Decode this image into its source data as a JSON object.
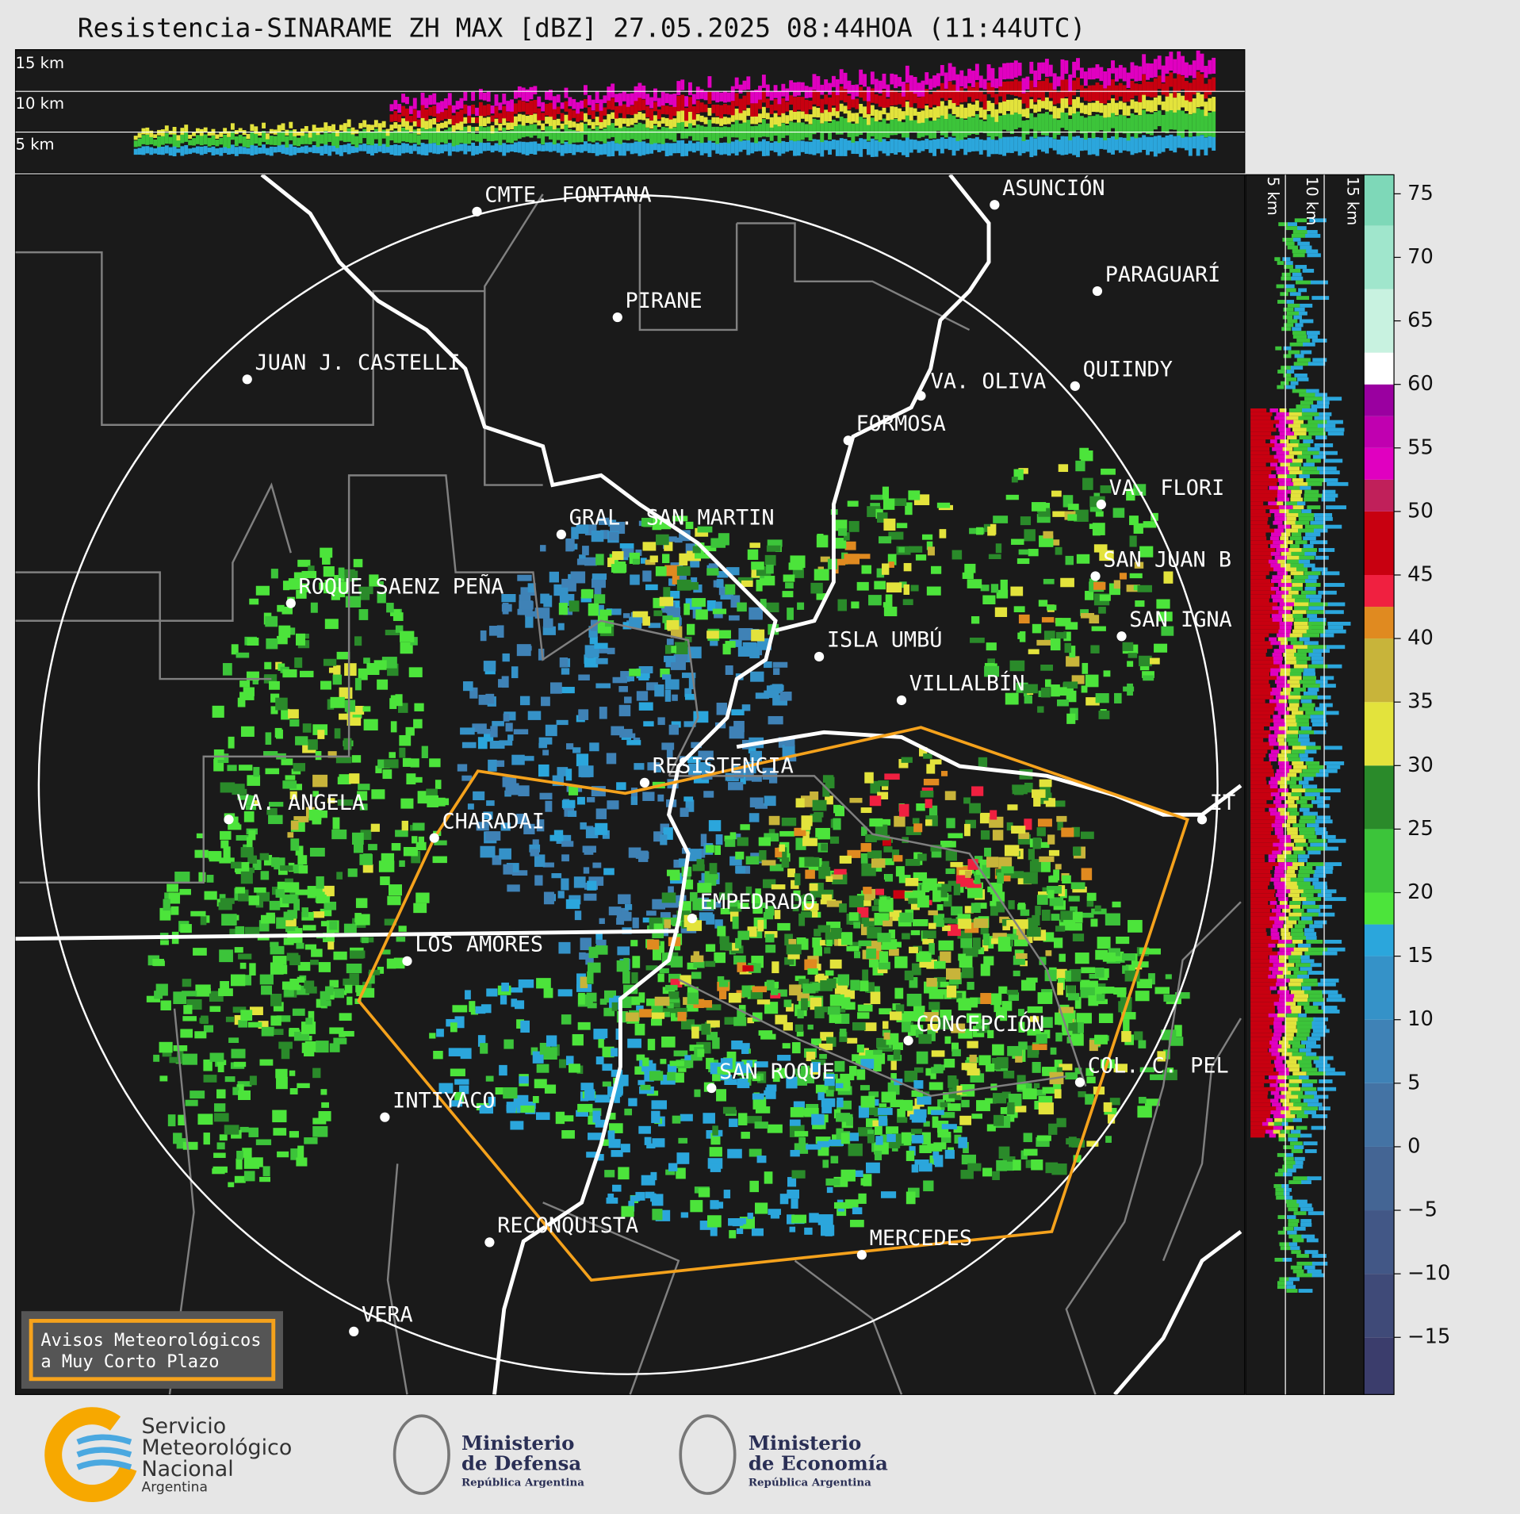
{
  "title": "Resistencia-SINARAME ZH MAX [dBZ] 27.05.2025 08:44HOA (11:44UTC)",
  "top_panel_heights": [
    "15 km",
    "10 km",
    "5 km"
  ],
  "side_panel_heights": [
    "5 km",
    "10 km",
    "15 km"
  ],
  "cities": [
    "CMTE. FONTANA",
    "PIRANE",
    "JUAN J. CASTELLI",
    "ASUNCIÓN",
    "PARAGUARÍ",
    "VA. OLIVA",
    "QUIINDY",
    "FORMOSA",
    "VA. FLORI",
    "GRAL. SAN MARTIN",
    "SAN JUAN B",
    "ROQUE SAENZ PEÑA",
    "SAN IGNA",
    "ISLA UMBÚ",
    "VILLALBÍN",
    "RESISTENCIA",
    "IT",
    "VA. ANGELA",
    "CHARADAI",
    "EMPEDRADO",
    "LOS AMORES",
    "CONCEPCIÓN",
    "COL. C. PEL",
    "SAN ROQUE",
    "INTIYACO",
    "RECONQUISTA",
    "MERCEDES",
    "VERA"
  ],
  "warning_box": [
    "Avisos Meteorológicos",
    "a Muy Corto Plazo"
  ],
  "colorbar": {
    "lim": [
      -19.5,
      76.5
    ],
    "ticks": [
      {
        "value": -15,
        "label": "−15"
      },
      {
        "value": -10,
        "label": "−10"
      },
      {
        "value": -5,
        "label": "−5"
      },
      0,
      5,
      10,
      15,
      20,
      25,
      30,
      35,
      40,
      45,
      50,
      55,
      60,
      65,
      70,
      75
    ],
    "bands": [
      {
        "from": -19.5,
        "to": -15,
        "color": "#3b3d6c"
      },
      {
        "from": -15,
        "to": -10,
        "color": "#3f4a78"
      },
      {
        "from": -10,
        "to": -5,
        "color": "#425786"
      },
      {
        "from": -5,
        "to": 0,
        "color": "#446594"
      },
      {
        "from": 0,
        "to": 5,
        "color": "#4473a4"
      },
      {
        "from": 5,
        "to": 10,
        "color": "#3f82b6"
      },
      {
        "from": 10,
        "to": 15,
        "color": "#3592c8"
      },
      {
        "from": 15,
        "to": 17.5,
        "color": "#2ba6dc"
      },
      {
        "from": 17.5,
        "to": 20,
        "color": "#4ce43b"
      },
      {
        "from": 20,
        "to": 25,
        "color": "#3cc43a"
      },
      {
        "from": 25,
        "to": 30,
        "color": "#2a8a2a"
      },
      {
        "from": 30,
        "to": 35,
        "color": "#e3e33c"
      },
      {
        "from": 35,
        "to": 40,
        "color": "#c8b43a"
      },
      {
        "from": 40,
        "to": 42.5,
        "color": "#e08a20"
      },
      {
        "from": 42.5,
        "to": 45,
        "color": "#f02040"
      },
      {
        "from": 45,
        "to": 50,
        "color": "#c80010"
      },
      {
        "from": 50,
        "to": 52.5,
        "color": "#c0205a"
      },
      {
        "from": 52.5,
        "to": 55,
        "color": "#e000c0"
      },
      {
        "from": 55,
        "to": 57.5,
        "color": "#c000b0"
      },
      {
        "from": 57.5,
        "to": 60,
        "color": "#9a00a0"
      },
      {
        "from": 60,
        "to": 62.5,
        "color": "#ffffff"
      },
      {
        "from": 62.5,
        "to": 67.5,
        "color": "#c8f2e0"
      },
      {
        "from": 67.5,
        "to": 72.5,
        "color": "#a0e6cc"
      },
      {
        "from": 72.5,
        "to": 76.5,
        "color": "#7ed8b8"
      }
    ]
  },
  "logos": {
    "smn": [
      "Servicio",
      "Meteorológico",
      "Nacional",
      "Argentina"
    ],
    "defensa": [
      "Ministerio",
      "de Defensa",
      "República Argentina"
    ],
    "economia": [
      "Ministerio",
      "de Economía",
      "República Argentina"
    ]
  }
}
